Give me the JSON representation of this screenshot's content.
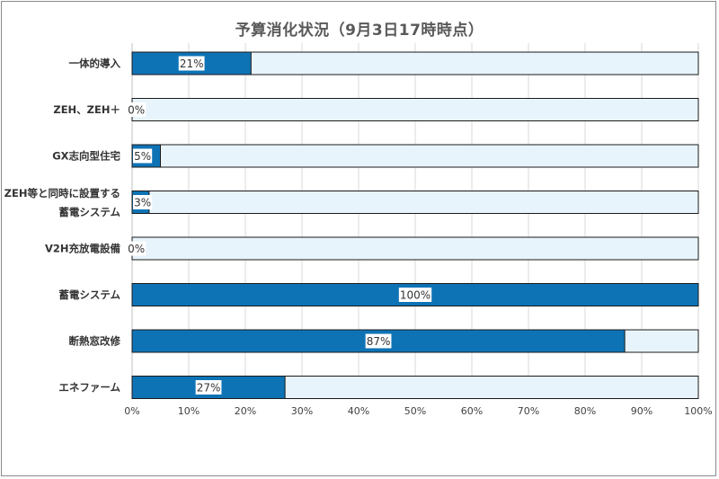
{
  "chart_data": {
    "type": "bar",
    "orientation": "horizontal",
    "title": "予算消化状況（9月3日17時時点）",
    "xlabel": "",
    "ylabel": "",
    "xlim": [
      0,
      100
    ],
    "ticks": [
      "0%",
      "10%",
      "20%",
      "30%",
      "40%",
      "50%",
      "60%",
      "70%",
      "80%",
      "90%",
      "100%"
    ],
    "grid": true,
    "categories": [
      [
        "一体的導入"
      ],
      [
        "ZEH、ZEH＋"
      ],
      [
        "GX志向型住宅"
      ],
      [
        "ZEH等と同時に設置する",
        "蓄電システム"
      ],
      [
        "V2H充放電設備"
      ],
      [
        "蓄電システム"
      ],
      [
        "断熱窓改修"
      ],
      [
        "エネファーム"
      ]
    ],
    "values": [
      21,
      0,
      5,
      3,
      0,
      100,
      87,
      27
    ],
    "data_labels": [
      "21%",
      "0%",
      "5%",
      "3%",
      "0%",
      "100%",
      "87%",
      "27%"
    ],
    "colors": {
      "filled": "#0e73b5",
      "remaining": "#e8f4fc",
      "border": "#1a1a1a",
      "grid": "#d9d9d9"
    }
  }
}
